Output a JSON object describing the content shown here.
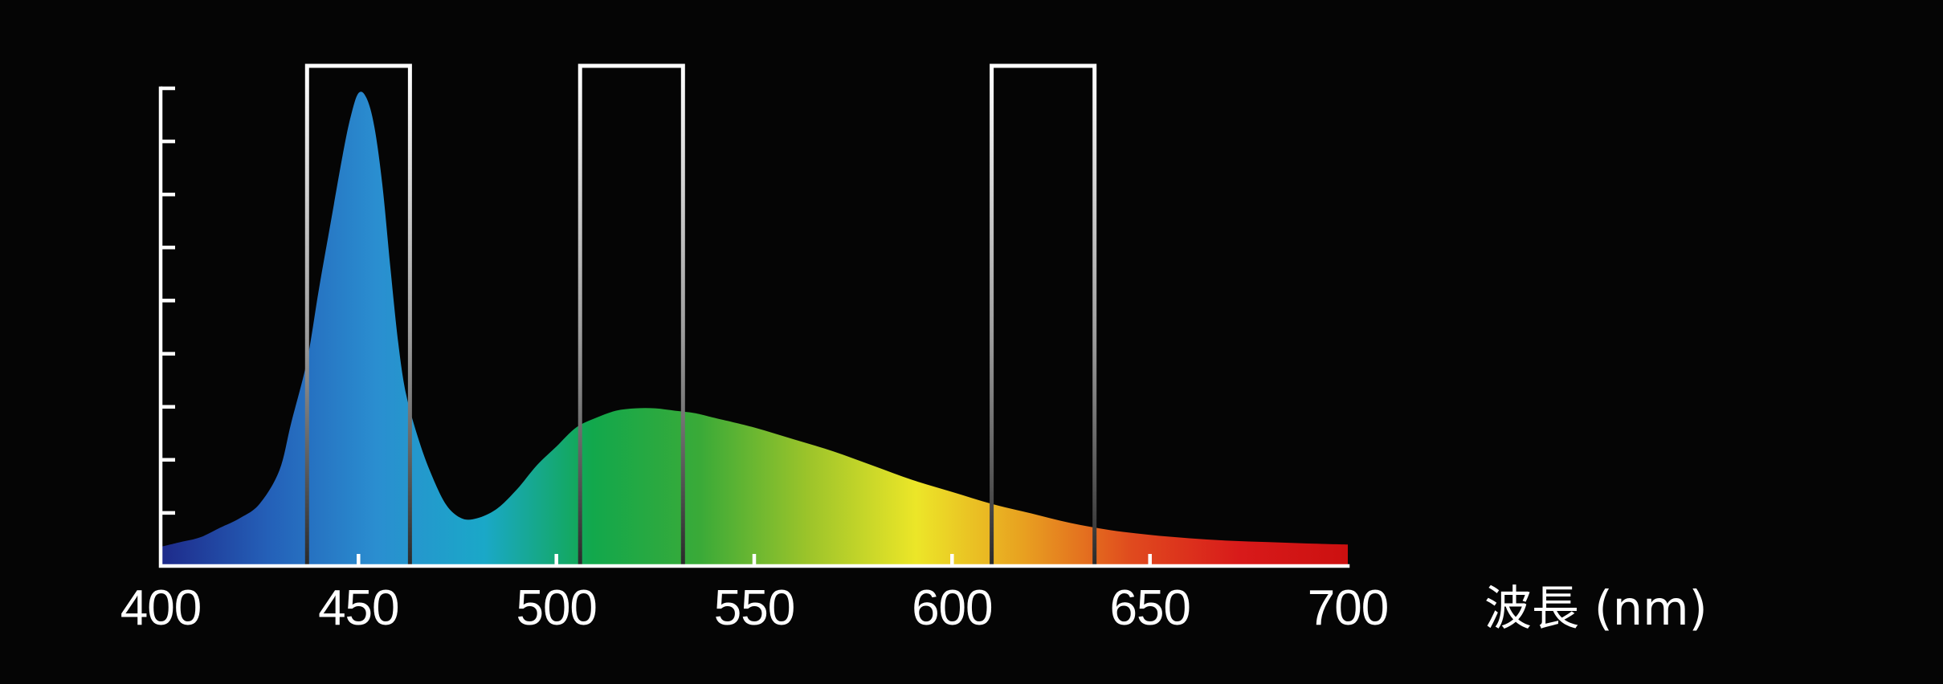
{
  "chart_data": {
    "type": "area",
    "title": "",
    "xlabel": "波長 (nm)",
    "ylabel": "",
    "xlim": [
      400,
      700
    ],
    "ylim": [
      0,
      1.0
    ],
    "x_ticks": [
      400,
      450,
      500,
      550,
      600,
      650,
      700
    ],
    "y_tick_count": 9,
    "y_tick_labels": false,
    "grid": false,
    "legend": "none",
    "fill": "visible-spectrum gradient",
    "series": [
      {
        "x": [
          400,
          405,
          410,
          415,
          420,
          425,
          430,
          433,
          437,
          440,
          443,
          446,
          448,
          450,
          452,
          454,
          456,
          458,
          460,
          462,
          465,
          468,
          472,
          476,
          480,
          485,
          490,
          495,
          500,
          505,
          510,
          515,
          520,
          525,
          530,
          535,
          540,
          550,
          560,
          570,
          580,
          590,
          600,
          610,
          620,
          630,
          640,
          650,
          660,
          670,
          680,
          690,
          700
        ],
        "y": [
          0.04,
          0.05,
          0.06,
          0.08,
          0.1,
          0.13,
          0.2,
          0.3,
          0.43,
          0.58,
          0.72,
          0.86,
          0.94,
          0.99,
          0.98,
          0.92,
          0.8,
          0.63,
          0.47,
          0.36,
          0.27,
          0.2,
          0.13,
          0.1,
          0.1,
          0.12,
          0.16,
          0.21,
          0.25,
          0.29,
          0.31,
          0.325,
          0.33,
          0.33,
          0.325,
          0.32,
          0.31,
          0.29,
          0.265,
          0.24,
          0.21,
          0.18,
          0.155,
          0.13,
          0.11,
          0.09,
          0.075,
          0.065,
          0.058,
          0.053,
          0.05,
          0.047,
          0.045
        ]
      }
    ],
    "bands": [
      {
        "x_min": 437,
        "x_max": 463
      },
      {
        "x_min": 506,
        "x_max": 532
      },
      {
        "x_min": 610,
        "x_max": 636
      }
    ],
    "colors": {
      "background": "#050505",
      "axis": "#ffffff",
      "band_top": "#ffffff",
      "band_bottom": "#2a2a2a",
      "spectrum_stops": [
        "#1e2a8a",
        "#2460b8",
        "#2a8ed0",
        "#1aa8c8",
        "#12a84c",
        "#3aaa38",
        "#9cc42a",
        "#ece628",
        "#e8a020",
        "#e04a1e",
        "#d81a1a",
        "#cc1010"
      ]
    }
  }
}
